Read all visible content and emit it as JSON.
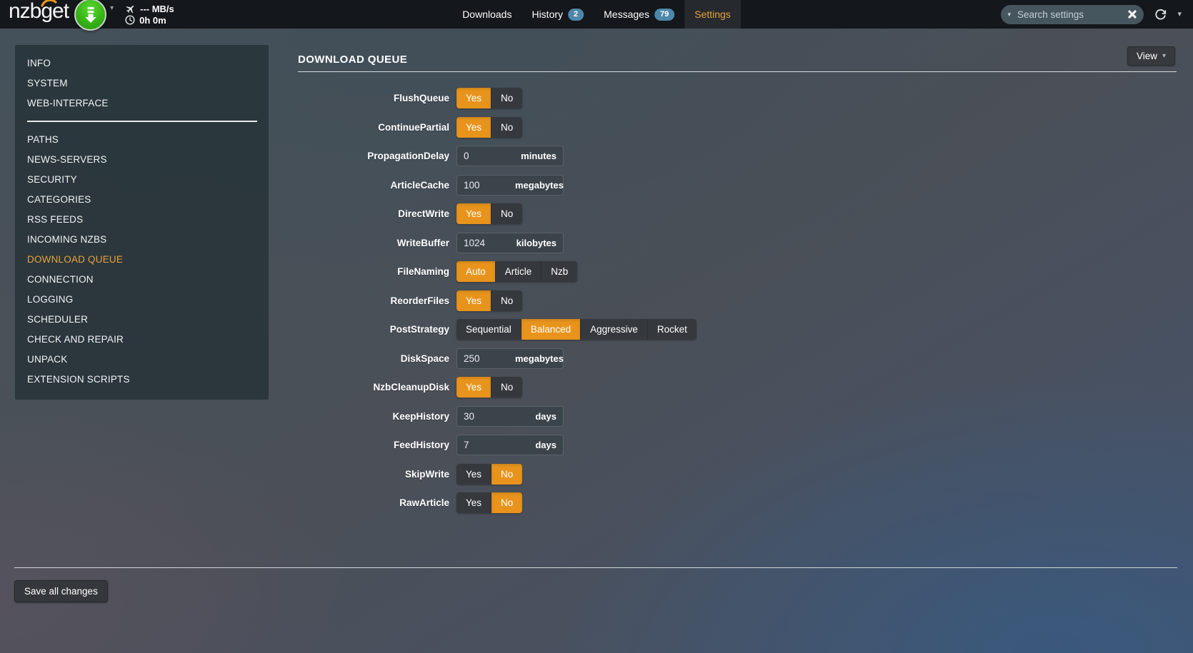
{
  "colors": {
    "accent_orange": "#e8941c",
    "active_tab_text": "#e8a33d",
    "badge_blue": "#4e87aa",
    "navbar_bg": "#14171b",
    "green_button": "#36b315"
  },
  "navbar": {
    "logo": "nzbget",
    "status": {
      "speed": "--- MB/s",
      "time": "0h 0m"
    },
    "tabs": [
      {
        "id": "downloads",
        "label": "Downloads",
        "badge": null,
        "active": false
      },
      {
        "id": "history",
        "label": "History",
        "badge": "2",
        "active": false
      },
      {
        "id": "messages",
        "label": "Messages",
        "badge": "79",
        "active": false
      },
      {
        "id": "settings",
        "label": "Settings",
        "badge": null,
        "active": true
      }
    ],
    "search": {
      "placeholder": "Search settings"
    }
  },
  "sidebar": {
    "items": [
      {
        "label": "INFO"
      },
      {
        "label": "SYSTEM"
      },
      {
        "label": "WEB-INTERFACE"
      },
      {
        "divider": true
      },
      {
        "label": "PATHS"
      },
      {
        "label": "NEWS-SERVERS"
      },
      {
        "label": "SECURITY"
      },
      {
        "label": "CATEGORIES"
      },
      {
        "label": "RSS FEEDS"
      },
      {
        "label": "INCOMING NZBS"
      },
      {
        "label": "DOWNLOAD QUEUE",
        "active": true
      },
      {
        "label": "CONNECTION"
      },
      {
        "label": "LOGGING"
      },
      {
        "label": "SCHEDULER"
      },
      {
        "label": "CHECK AND REPAIR"
      },
      {
        "label": "UNPACK"
      },
      {
        "label": "EXTENSION SCRIPTS"
      }
    ]
  },
  "main": {
    "title": "DOWNLOAD QUEUE",
    "view_button": "View",
    "save_button": "Save all changes",
    "settings": [
      {
        "name": "FlushQueue",
        "type": "toggle",
        "options": [
          "Yes",
          "No"
        ],
        "selected": "Yes"
      },
      {
        "name": "ContinuePartial",
        "type": "toggle",
        "options": [
          "Yes",
          "No"
        ],
        "selected": "Yes"
      },
      {
        "name": "PropagationDelay",
        "type": "input",
        "value": "0",
        "unit": "minutes"
      },
      {
        "name": "ArticleCache",
        "type": "input",
        "value": "100",
        "unit": "megabytes"
      },
      {
        "name": "DirectWrite",
        "type": "toggle",
        "options": [
          "Yes",
          "No"
        ],
        "selected": "Yes"
      },
      {
        "name": "WriteBuffer",
        "type": "input",
        "value": "1024",
        "unit": "kilobytes"
      },
      {
        "name": "FileNaming",
        "type": "toggle",
        "options": [
          "Auto",
          "Article",
          "Nzb"
        ],
        "selected": "Auto"
      },
      {
        "name": "ReorderFiles",
        "type": "toggle",
        "options": [
          "Yes",
          "No"
        ],
        "selected": "Yes"
      },
      {
        "name": "PostStrategy",
        "type": "toggle",
        "options": [
          "Sequential",
          "Balanced",
          "Aggressive",
          "Rocket"
        ],
        "selected": "Balanced"
      },
      {
        "name": "DiskSpace",
        "type": "input",
        "value": "250",
        "unit": "megabytes"
      },
      {
        "name": "NzbCleanupDisk",
        "type": "toggle",
        "options": [
          "Yes",
          "No"
        ],
        "selected": "Yes"
      },
      {
        "name": "KeepHistory",
        "type": "input",
        "value": "30",
        "unit": "days"
      },
      {
        "name": "FeedHistory",
        "type": "input",
        "value": "7",
        "unit": "days"
      },
      {
        "name": "SkipWrite",
        "type": "toggle",
        "options": [
          "Yes",
          "No"
        ],
        "selected": "No"
      },
      {
        "name": "RawArticle",
        "type": "toggle",
        "options": [
          "Yes",
          "No"
        ],
        "selected": "No"
      }
    ]
  }
}
